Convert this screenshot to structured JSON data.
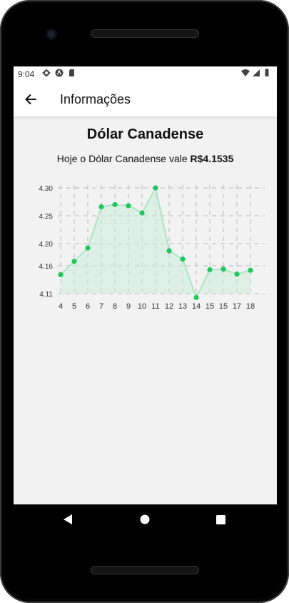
{
  "status_bar": {
    "time": "9:04"
  },
  "app_bar": {
    "title": "Informações"
  },
  "currency": {
    "name": "Dólar Canadense",
    "sentence": "Hoje o Dólar Canadense vale ",
    "value": "R$4.1535"
  },
  "colors": {
    "accent": "#22c55e",
    "area": "#cdeedd",
    "line": "#a8e6c2",
    "grid": "#b7b7b7"
  },
  "chart_data": {
    "type": "line",
    "x": [
      "4",
      "5",
      "6",
      "7",
      "8",
      "9",
      "10",
      "11",
      "12",
      "13",
      "14",
      "15",
      "15",
      "17",
      "18"
    ],
    "values": [
      4.144,
      4.168,
      4.192,
      4.266,
      4.27,
      4.268,
      4.255,
      4.3,
      4.187,
      4.172,
      4.103,
      4.153,
      4.154,
      4.145,
      4.152
    ],
    "y_ticks": [
      "4.30",
      "4.25",
      "4.20",
      "4.16",
      "4.11"
    ],
    "ylim": [
      4.11,
      4.3
    ],
    "grid": true,
    "fill": true
  }
}
